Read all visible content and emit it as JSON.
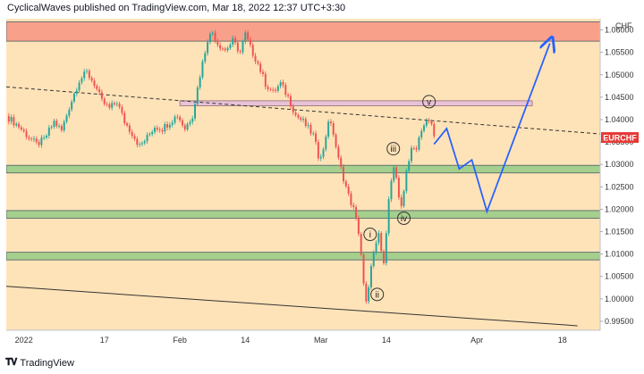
{
  "header": {
    "text": "CyclicalWaves published on TradingView.com, Mar 18, 2022 12:37 UTC+3:30"
  },
  "footer": {
    "logo_icon": "tradingview-logo-icon",
    "text": "TradingView"
  },
  "chart_data": {
    "type": "candlestick",
    "symbol": "EURCHF",
    "currency": "CHF",
    "y_range": [
      0.993,
      1.0625
    ],
    "y_ticks": [
      "1.06000",
      "1.05500",
      "1.05000",
      "1.04500",
      "1.04000",
      "1.03500",
      "1.03000",
      "1.02500",
      "1.02000",
      "1.01500",
      "1.01000",
      "1.00500",
      "1.00000",
      "0.99500"
    ],
    "x_ticks": [
      {
        "label": "2022",
        "day": 0
      },
      {
        "label": "17",
        "day": 16
      },
      {
        "label": "Feb",
        "day": 31
      },
      {
        "label": "14",
        "day": 44
      },
      {
        "label": "Mar",
        "day": 59
      },
      {
        "label": "14",
        "day": 72
      },
      {
        "label": "Apr",
        "day": 90
      },
      {
        "label": "18",
        "day": 107
      }
    ],
    "x_day_range": [
      -3.5,
      114.5
    ],
    "last_price_label": "EURCHF",
    "colors": {
      "up": "#26a69a",
      "down": "#ef5350",
      "zone_red": "#f9a08a",
      "zone_green": "#a5cf8c",
      "band": "#ffe3b8",
      "projection": "#2962ff",
      "resistance_band": "#e9c2d6"
    },
    "price_path": [
      [
        -3.5,
        1.0408
      ],
      [
        -1,
        1.0385
      ],
      [
        1,
        1.036
      ],
      [
        2.5,
        1.0345
      ],
      [
        4,
        1.0355
      ],
      [
        6,
        1.0395
      ],
      [
        7.5,
        1.0375
      ],
      [
        9,
        1.0428
      ],
      [
        11,
        1.0488
      ],
      [
        12.5,
        1.0505
      ],
      [
        14,
        1.048
      ],
      [
        15.5,
        1.044
      ],
      [
        17,
        1.0425
      ],
      [
        18.5,
        1.044
      ],
      [
        20,
        1.0395
      ],
      [
        21.5,
        1.037
      ],
      [
        23,
        1.034
      ],
      [
        24.5,
        1.036
      ],
      [
        26,
        1.0385
      ],
      [
        27.5,
        1.038
      ],
      [
        29,
        1.0395
      ],
      [
        30.5,
        1.041
      ],
      [
        32,
        1.038
      ],
      [
        33.5,
        1.041
      ],
      [
        35,
        1.05
      ],
      [
        36.5,
        1.058
      ],
      [
        37.5,
        1.0595
      ],
      [
        38.5,
        1.057
      ],
      [
        40,
        1.0555
      ],
      [
        41.5,
        1.0575
      ],
      [
        43,
        1.055
      ],
      [
        44,
        1.059
      ],
      [
        45,
        1.056
      ],
      [
        46.5,
        1.0525
      ],
      [
        48,
        1.048
      ],
      [
        49.5,
        1.046
      ],
      [
        51,
        1.048
      ],
      [
        52.5,
        1.045
      ],
      [
        54,
        1.041
      ],
      [
        55.5,
        1.0395
      ],
      [
        56.5,
        1.038
      ],
      [
        57.5,
        1.0365
      ],
      [
        58.5,
        1.032
      ],
      [
        59.5,
        1.033
      ],
      [
        60.5,
        1.04
      ],
      [
        61.5,
        1.037
      ],
      [
        62.5,
        1.031
      ],
      [
        63.5,
        1.027
      ],
      [
        64.5,
        1.023
      ],
      [
        65.5,
        1.02
      ],
      [
        66.5,
        1.015
      ],
      [
        67,
        1.01
      ],
      [
        67.5,
        1.003
      ],
      [
        68,
        0.999
      ],
      [
        68.5,
        1.002
      ],
      [
        69,
        1.008
      ],
      [
        70,
        1.012
      ],
      [
        70.5,
        1.014
      ],
      [
        71,
        1.0105
      ],
      [
        71.5,
        1.008
      ],
      [
        72,
        1.014
      ],
      [
        72.5,
        1.023
      ],
      [
        73,
        1.027
      ],
      [
        73.5,
        1.029
      ],
      [
        74,
        1.027
      ],
      [
        74.5,
        1.022
      ],
      [
        75,
        1.02
      ],
      [
        75.5,
        1.024
      ],
      [
        76,
        1.029
      ],
      [
        77,
        1.033
      ],
      [
        78,
        1.034
      ],
      [
        79,
        1.038
      ],
      [
        80,
        1.0395
      ],
      [
        81,
        1.039
      ],
      [
        81.5,
        1.036
      ]
    ],
    "horizontal_zones": [
      {
        "name": "red-resistance-zone",
        "y0": 1.0575,
        "y1": 1.0618
      },
      {
        "name": "green-support-zone-1",
        "y0": 1.0281,
        "y1": 1.0298
      },
      {
        "name": "green-support-zone-2",
        "y0": 1.018,
        "y1": 1.0197
      },
      {
        "name": "green-support-zone-3",
        "y0": 1.0087,
        "y1": 1.0104
      }
    ],
    "resistance_band": {
      "x0": 31,
      "x1": 101,
      "y0": 1.0431,
      "y1": 1.0442
    },
    "dashed_trendline": [
      [
        -3.5,
        1.0473
      ],
      [
        114.5,
        1.0368
      ]
    ],
    "solid_trendline": [
      [
        -3.5,
        1.0028
      ],
      [
        110,
        0.994
      ]
    ],
    "wave_labels": [
      {
        "label": "i",
        "x": 68.8,
        "y": 1.0144
      },
      {
        "label": "ii",
        "x": 70.2,
        "y": 1.001
      },
      {
        "label": "iii",
        "x": 73.4,
        "y": 1.0335
      },
      {
        "label": "iv",
        "x": 75.5,
        "y": 1.018
      },
      {
        "label": "v",
        "x": 80.5,
        "y": 1.044
      }
    ],
    "projection": [
      [
        81.5,
        1.0345
      ],
      [
        84,
        1.038
      ],
      [
        86.5,
        1.029
      ],
      [
        89,
        1.031
      ],
      [
        92,
        1.0195
      ],
      [
        104.5,
        1.057
      ]
    ]
  }
}
